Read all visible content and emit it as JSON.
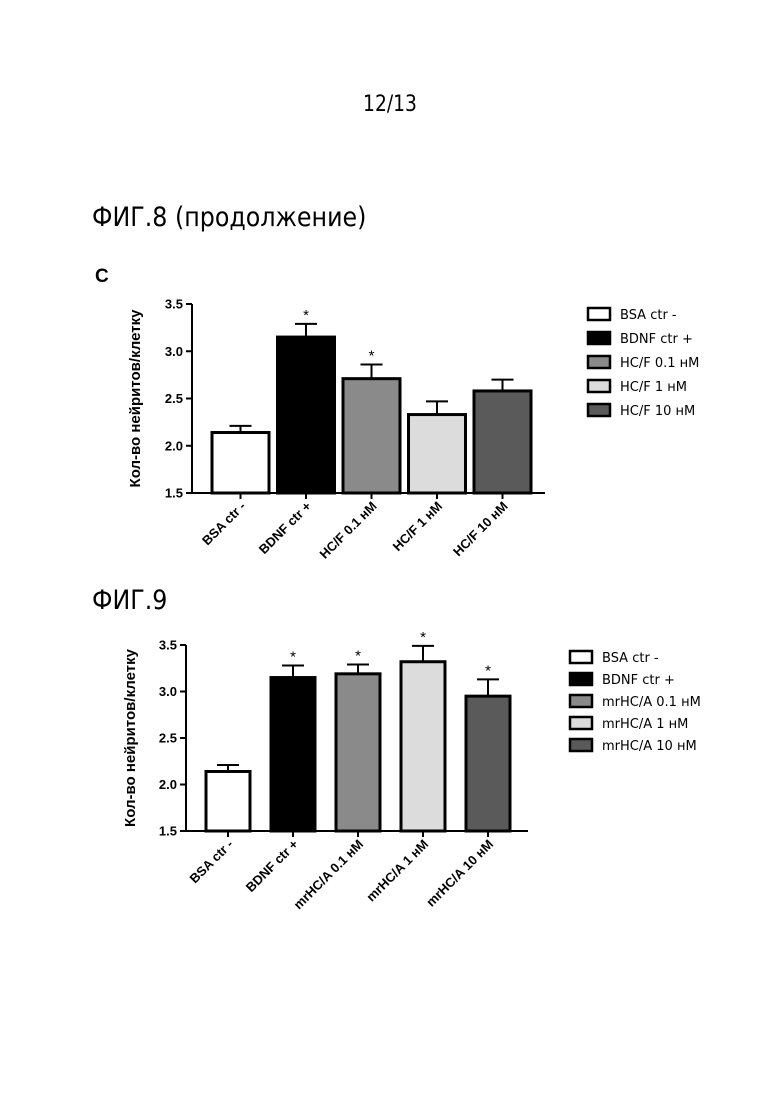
{
  "page": {
    "number": "12/13"
  },
  "figures": [
    {
      "title": "ФИГ.8 (продолжение)",
      "panel": "C"
    },
    {
      "title": "ФИГ.9",
      "panel": ""
    }
  ],
  "chart_data": [
    {
      "type": "bar",
      "title": "",
      "xlabel": "",
      "ylabel": "Кол-во нейритов/клетку",
      "ylim": [
        1.5,
        3.5
      ],
      "yticks": [
        "1.5",
        "2.0",
        "2.5",
        "3.0",
        "3.5"
      ],
      "categories": [
        "BSA ctr -",
        "BDNF ctr +",
        "HC/F 0.1 нМ",
        "HC/F 1 нМ",
        "HC/F 10 нМ"
      ],
      "values": [
        2.14,
        3.15,
        2.71,
        2.33,
        2.58
      ],
      "errors": [
        0.07,
        0.14,
        0.15,
        0.14,
        0.12
      ],
      "significance": [
        "",
        "*",
        "*",
        "",
        ""
      ],
      "colors": [
        "#ffffff",
        "#000000",
        "#8a8a8a",
        "#dcdcdc",
        "#5a5a5a"
      ],
      "legend": {
        "position": "right",
        "entries": [
          "BSA ctr -",
          "BDNF ctr +",
          "HC/F 0.1 нМ",
          "HC/F 1 нМ",
          "HC/F 10 нМ"
        ]
      },
      "grid": false
    },
    {
      "type": "bar",
      "title": "",
      "xlabel": "",
      "ylabel": "Кол-во нейритов/клетку",
      "ylim": [
        1.5,
        3.5
      ],
      "yticks": [
        "1.5",
        "2.0",
        "2.5",
        "3.0",
        "3.5"
      ],
      "categories": [
        "BSA ctr -",
        "BDNF ctr +",
        "mrHC/A 0.1 нМ",
        "mrHC/A 1 нМ",
        "mrHC/A 10 нМ"
      ],
      "values": [
        2.14,
        3.15,
        3.19,
        3.32,
        2.95
      ],
      "errors": [
        0.07,
        0.13,
        0.1,
        0.17,
        0.18
      ],
      "significance": [
        "",
        "*",
        "*",
        "*",
        "*"
      ],
      "colors": [
        "#ffffff",
        "#000000",
        "#8a8a8a",
        "#dcdcdc",
        "#5a5a5a"
      ],
      "legend": {
        "position": "right",
        "entries": [
          "BSA ctr -",
          "BDNF ctr +",
          "mrHC/A 0.1 нМ",
          "mrHC/A 1 нМ",
          "mrHC/A 10 нМ"
        ]
      },
      "grid": false
    }
  ]
}
